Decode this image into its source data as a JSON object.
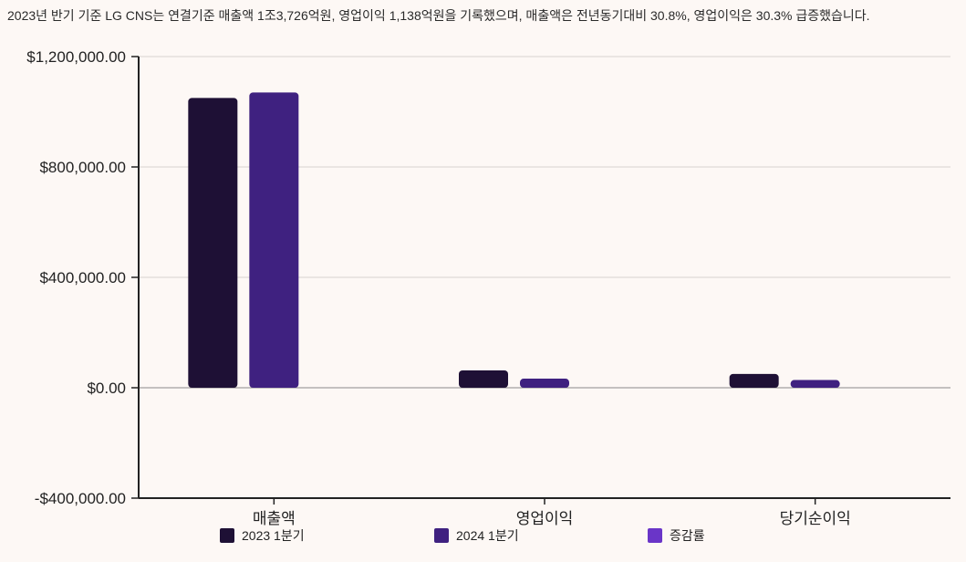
{
  "caption": "2023년 반기 기준 LG CNS는 연결기준 매출액 1조3,726억원, 영업이익 1,138억원을 기록했으며, 매출액은 전년동기대비 30.8%, 영업이익은 30.3% 급증했습니다.",
  "chart_data": {
    "type": "bar",
    "title": "",
    "xlabel": "",
    "ylabel": "",
    "categories": [
      "매출액",
      "영업이익",
      "당기순이익"
    ],
    "series": [
      {
        "name": "2023 1분기",
        "color": "#1e1035",
        "values": [
          1050000,
          63000,
          50000
        ]
      },
      {
        "name": "2024 1분기",
        "color": "#3f2180",
        "values": [
          1070000,
          33000,
          28000
        ]
      },
      {
        "name": "증감률",
        "color": "#6a35c8",
        "values": [
          0,
          0,
          0
        ]
      }
    ],
    "ylim": [
      -400000,
      1200000
    ],
    "yticks": [
      -400000,
      0,
      400000,
      800000,
      1200000
    ],
    "ytick_labels": [
      "-$400,000.00",
      "$0.00",
      "$400,000.00",
      "$800,000.00",
      "$1,200,000.00"
    ],
    "grid": true,
    "legend_position": "bottom"
  }
}
